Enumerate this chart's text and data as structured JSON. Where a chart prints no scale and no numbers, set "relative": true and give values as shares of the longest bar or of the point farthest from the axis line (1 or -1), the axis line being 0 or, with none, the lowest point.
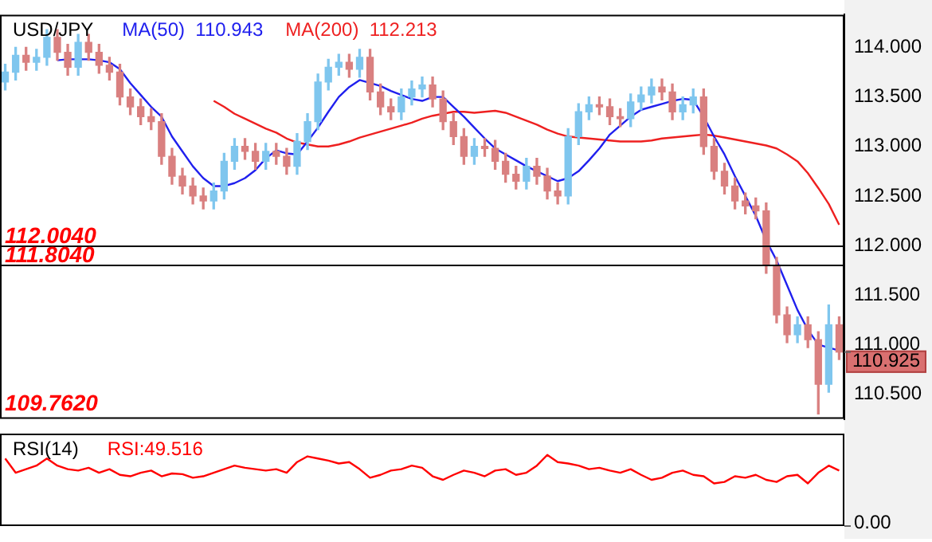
{
  "chart_data": [
    {
      "type": "candlestick",
      "title": "USD/JPY",
      "categories": [
        null,
        null,
        null,
        null,
        null,
        null,
        null,
        null,
        null,
        null,
        null,
        null,
        null,
        null,
        null,
        null,
        null,
        null,
        null,
        null,
        null,
        null,
        null,
        null,
        null,
        null,
        null,
        null,
        null,
        null,
        null,
        null,
        null,
        null,
        null,
        null,
        null,
        null,
        null,
        null,
        null,
        null,
        null,
        null,
        null,
        null,
        null,
        null,
        null,
        null,
        null,
        null,
        null,
        null,
        null,
        null,
        null,
        null,
        null,
        null,
        null,
        null,
        null,
        null,
        null,
        null,
        null,
        null,
        null,
        null,
        null,
        null,
        null,
        null,
        null,
        null,
        null,
        null,
        null,
        null,
        null
      ],
      "ohlc": [
        [
          113.65,
          113.83,
          113.57,
          113.75
        ],
        [
          113.75,
          114.0,
          113.67,
          113.92
        ],
        [
          113.92,
          114.0,
          113.77,
          113.85
        ],
        [
          113.85,
          113.98,
          113.77,
          113.9
        ],
        [
          113.9,
          114.18,
          113.82,
          114.1
        ],
        [
          114.1,
          114.18,
          113.87,
          113.95
        ],
        [
          113.95,
          114.03,
          113.72,
          113.8
        ],
        [
          113.8,
          114.13,
          113.72,
          114.05
        ],
        [
          114.05,
          114.13,
          113.87,
          113.95
        ],
        [
          113.95,
          114.03,
          113.74,
          113.82
        ],
        [
          113.82,
          113.9,
          113.67,
          113.75
        ],
        [
          113.75,
          113.83,
          113.42,
          113.5
        ],
        [
          113.5,
          113.58,
          113.32,
          113.4
        ],
        [
          113.4,
          113.48,
          113.22,
          113.3
        ],
        [
          113.3,
          113.38,
          113.17,
          113.25
        ],
        [
          113.25,
          113.33,
          112.82,
          112.9
        ],
        [
          112.9,
          112.98,
          112.62,
          112.7
        ],
        [
          112.7,
          112.78,
          112.52,
          112.6
        ],
        [
          112.6,
          112.68,
          112.42,
          112.5
        ],
        [
          112.5,
          112.58,
          112.37,
          112.45
        ],
        [
          112.45,
          112.63,
          112.37,
          112.55
        ],
        [
          112.55,
          112.93,
          112.47,
          112.85
        ],
        [
          112.85,
          113.08,
          112.77,
          113.0
        ],
        [
          113.0,
          113.08,
          112.87,
          112.95
        ],
        [
          112.95,
          113.03,
          112.77,
          112.85
        ],
        [
          112.85,
          113.03,
          112.77,
          112.95
        ],
        [
          112.95,
          113.03,
          112.82,
          112.9
        ],
        [
          112.9,
          112.98,
          112.72,
          112.8
        ],
        [
          112.8,
          113.13,
          112.72,
          113.05
        ],
        [
          113.05,
          113.33,
          112.97,
          113.25
        ],
        [
          113.25,
          113.73,
          113.17,
          113.65
        ],
        [
          113.65,
          113.88,
          113.57,
          113.8
        ],
        [
          113.8,
          113.93,
          113.72,
          113.85
        ],
        [
          113.85,
          113.93,
          113.7,
          113.78
        ],
        [
          113.78,
          113.98,
          113.7,
          113.9
        ],
        [
          113.9,
          113.98,
          113.47,
          113.55
        ],
        [
          113.55,
          113.63,
          113.32,
          113.4
        ],
        [
          113.4,
          113.48,
          113.27,
          113.35
        ],
        [
          113.35,
          113.58,
          113.27,
          113.5
        ],
        [
          113.5,
          113.66,
          113.42,
          113.58
        ],
        [
          113.58,
          113.7,
          113.5,
          113.62
        ],
        [
          113.62,
          113.7,
          113.4,
          113.48
        ],
        [
          113.48,
          113.56,
          113.17,
          113.25
        ],
        [
          113.25,
          113.33,
          113.02,
          113.1
        ],
        [
          113.1,
          113.18,
          112.82,
          112.9
        ],
        [
          112.9,
          113.08,
          112.82,
          113.0
        ],
        [
          113.0,
          113.08,
          112.9,
          112.98
        ],
        [
          112.98,
          113.06,
          112.77,
          112.85
        ],
        [
          112.85,
          112.93,
          112.64,
          112.72
        ],
        [
          112.72,
          112.8,
          112.57,
          112.65
        ],
        [
          112.65,
          112.88,
          112.57,
          112.8
        ],
        [
          112.8,
          112.88,
          112.62,
          112.7
        ],
        [
          112.7,
          112.78,
          112.47,
          112.55
        ],
        [
          112.55,
          112.63,
          112.42,
          112.5
        ],
        [
          112.5,
          113.18,
          112.42,
          113.1
        ],
        [
          113.1,
          113.43,
          113.02,
          113.35
        ],
        [
          113.35,
          113.5,
          113.27,
          113.42
        ],
        [
          113.42,
          113.5,
          113.32,
          113.4
        ],
        [
          113.4,
          113.48,
          113.22,
          113.3
        ],
        [
          113.3,
          113.38,
          113.2,
          113.28
        ],
        [
          113.28,
          113.53,
          113.2,
          113.45
        ],
        [
          113.45,
          113.6,
          113.37,
          113.52
        ],
        [
          113.52,
          113.68,
          113.44,
          113.6
        ],
        [
          113.6,
          113.68,
          113.47,
          113.55
        ],
        [
          113.55,
          113.63,
          113.27,
          113.35
        ],
        [
          113.35,
          113.5,
          113.27,
          113.42
        ],
        [
          113.42,
          113.58,
          113.34,
          113.5
        ],
        [
          113.5,
          113.58,
          112.92,
          113.0
        ],
        [
          113.0,
          113.08,
          112.67,
          112.75
        ],
        [
          112.75,
          112.83,
          112.52,
          112.6
        ],
        [
          112.6,
          112.68,
          112.37,
          112.45
        ],
        [
          112.45,
          112.53,
          112.32,
          112.4
        ],
        [
          112.4,
          112.48,
          112.27,
          112.35
        ],
        [
          112.35,
          112.43,
          111.72,
          111.8
        ],
        [
          111.8,
          111.88,
          111.22,
          111.3
        ],
        [
          111.3,
          111.38,
          111.02,
          111.1
        ],
        [
          111.1,
          111.28,
          111.02,
          111.2
        ],
        [
          111.2,
          111.28,
          110.97,
          111.05
        ],
        [
          111.05,
          111.13,
          110.3,
          110.6
        ],
        [
          110.6,
          111.4,
          110.52,
          111.2
        ],
        [
          111.2,
          111.28,
          110.85,
          110.925
        ]
      ],
      "colors": [
        "#7fc6ee",
        "#7fc6ee",
        "#d98080",
        "#7fc6ee",
        "#7fc6ee",
        "#d98080",
        "#d98080",
        "#7fc6ee",
        "#d98080",
        "#d98080",
        "#d98080",
        "#d98080",
        "#d98080",
        "#d98080",
        "#d98080",
        "#d98080",
        "#d98080",
        "#d98080",
        "#d98080",
        "#d98080",
        "#7fc6ee",
        "#7fc6ee",
        "#7fc6ee",
        "#d98080",
        "#d98080",
        "#7fc6ee",
        "#d98080",
        "#d98080",
        "#7fc6ee",
        "#7fc6ee",
        "#7fc6ee",
        "#7fc6ee",
        "#7fc6ee",
        "#d98080",
        "#7fc6ee",
        "#d98080",
        "#d98080",
        "#d98080",
        "#7fc6ee",
        "#7fc6ee",
        "#7fc6ee",
        "#d98080",
        "#d98080",
        "#d98080",
        "#d98080",
        "#7fc6ee",
        "#d98080",
        "#d98080",
        "#d98080",
        "#d98080",
        "#7fc6ee",
        "#d98080",
        "#d98080",
        "#d98080",
        "#7fc6ee",
        "#7fc6ee",
        "#7fc6ee",
        "#d98080",
        "#d98080",
        "#d98080",
        "#7fc6ee",
        "#7fc6ee",
        "#7fc6ee",
        "#d98080",
        "#d98080",
        "#7fc6ee",
        "#7fc6ee",
        "#d98080",
        "#d98080",
        "#d98080",
        "#d98080",
        "#d98080",
        "#d98080",
        "#d98080",
        "#d98080",
        "#d98080",
        "#7fc6ee",
        "#d98080",
        "#d98080",
        "#7fc6ee",
        "#d98080"
      ],
      "series": [
        {
          "type": "line",
          "name": "MA(50)  110.943",
          "color": "#2020ee",
          "values": [
            null,
            null,
            null,
            null,
            null,
            113.87,
            113.88,
            113.88,
            113.88,
            113.87,
            113.85,
            113.78,
            113.64,
            113.52,
            113.4,
            113.3,
            113.1,
            112.95,
            112.8,
            112.68,
            112.6,
            112.6,
            112.63,
            112.68,
            112.76,
            112.88,
            112.96,
            112.93,
            112.92,
            113.05,
            113.19,
            113.35,
            113.5,
            113.6,
            113.67,
            113.64,
            113.61,
            113.56,
            113.52,
            113.48,
            113.46,
            113.5,
            113.5,
            113.4,
            113.3,
            113.19,
            113.08,
            112.98,
            112.92,
            112.86,
            112.8,
            112.75,
            112.7,
            112.65,
            112.68,
            112.75,
            112.86,
            112.98,
            113.12,
            113.21,
            113.3,
            113.37,
            113.4,
            113.43,
            113.46,
            113.48,
            113.47,
            113.3,
            113.1,
            112.92,
            112.7,
            112.5,
            112.3,
            112.05,
            111.85,
            111.6,
            111.35,
            111.15,
            111.0,
            110.97,
            110.94
          ]
        },
        {
          "type": "line",
          "name": "MA(200)  112.213",
          "color": "#ee2020",
          "values": [
            null,
            null,
            null,
            null,
            null,
            null,
            null,
            null,
            null,
            null,
            null,
            null,
            null,
            null,
            null,
            null,
            null,
            null,
            null,
            null,
            113.46,
            113.4,
            113.33,
            113.28,
            113.23,
            113.18,
            113.14,
            113.08,
            113.04,
            113.02,
            113.0,
            113.0,
            113.02,
            113.05,
            113.09,
            113.12,
            113.15,
            113.18,
            113.21,
            113.24,
            113.28,
            113.31,
            113.33,
            113.35,
            113.35,
            113.34,
            113.35,
            113.36,
            113.34,
            113.3,
            113.26,
            113.22,
            113.17,
            113.13,
            113.1,
            113.09,
            113.08,
            113.07,
            113.06,
            113.05,
            113.05,
            113.05,
            113.06,
            113.08,
            113.09,
            113.1,
            113.11,
            113.12,
            113.11,
            113.09,
            113.07,
            113.05,
            113.03,
            113.01,
            112.98,
            112.92,
            112.85,
            112.73,
            112.58,
            112.42,
            112.21
          ]
        }
      ],
      "ylim": [
        110.25,
        114.33
      ],
      "yticks": [
        {
          "value": 110.5,
          "label": "110.500"
        },
        {
          "value": 111,
          "label": "111.000"
        },
        {
          "value": 111.5,
          "label": "111.500"
        },
        {
          "value": 112,
          "label": "112.000"
        },
        {
          "value": 112.5,
          "label": "112.500"
        },
        {
          "value": 113,
          "label": "113.000"
        },
        {
          "value": 113.5,
          "label": "113.500"
        },
        {
          "value": 114,
          "label": "114.000"
        }
      ],
      "ref_lines": [
        {
          "axis": "y",
          "value": 112.004,
          "label": "112.0040",
          "color": "#000000"
        },
        {
          "axis": "y",
          "value": 111.804,
          "label": "111.8040",
          "color": "#000000"
        }
      ],
      "annotations": [
        "109.7620",
        "110.925"
      ],
      "legend": "top left",
      "tick_labels": "y"
    },
    {
      "type": "line",
      "title": "RSI(14)",
      "relative": true,
      "categories": [
        null,
        null,
        null,
        null,
        null,
        null,
        null,
        null,
        null,
        null,
        null,
        null,
        null,
        null,
        null,
        null,
        null,
        null,
        null,
        null,
        null,
        null,
        null,
        null,
        null,
        null,
        null,
        null,
        null,
        null,
        null,
        null,
        null,
        null,
        null,
        null,
        null,
        null,
        null,
        null,
        null,
        null,
        null,
        null,
        null,
        null,
        null,
        null,
        null,
        null,
        null,
        null,
        null,
        null,
        null,
        null,
        null,
        null,
        null,
        null,
        null,
        null,
        null,
        null,
        null,
        null,
        null,
        null,
        null,
        null,
        null,
        null,
        null,
        null,
        null,
        null,
        null,
        null,
        null,
        null,
        null
      ],
      "series": [
        {
          "name": "RSI:49.516",
          "color": "#ff0000",
          "values": [
            0.95,
            0.75,
            0.8,
            0.85,
            0.95,
            0.85,
            0.8,
            0.78,
            0.82,
            0.75,
            0.8,
            0.72,
            0.7,
            0.75,
            0.78,
            0.7,
            0.74,
            0.73,
            0.68,
            0.7,
            0.75,
            0.8,
            0.85,
            0.82,
            0.8,
            0.78,
            0.8,
            0.75,
            0.9,
            0.98,
            0.95,
            0.92,
            0.88,
            0.9,
            0.8,
            0.68,
            0.72,
            0.78,
            0.8,
            0.85,
            0.82,
            0.7,
            0.65,
            0.72,
            0.78,
            0.75,
            0.7,
            0.78,
            0.8,
            0.72,
            0.75,
            0.85,
            1.0,
            0.9,
            0.88,
            0.85,
            0.8,
            0.82,
            0.78,
            0.75,
            0.8,
            0.72,
            0.65,
            0.68,
            0.75,
            0.78,
            0.72,
            0.7,
            0.6,
            0.62,
            0.7,
            0.68,
            0.72,
            0.65,
            0.62,
            0.7,
            0.72,
            0.6,
            0.75,
            0.85,
            0.78
          ]
        }
      ],
      "annotations": [
        "0.00"
      ],
      "legend": "top left",
      "tick_labels": false
    }
  ]
}
